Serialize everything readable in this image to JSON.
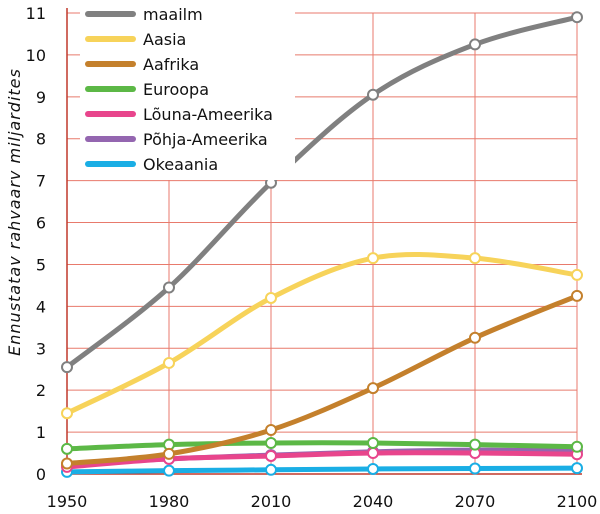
{
  "chart_data": {
    "type": "line",
    "title": "",
    "xlabel": "",
    "ylabel": "Ennustatav rahvaarv miljardites",
    "x": [
      1950,
      1980,
      2010,
      2040,
      2070,
      2100
    ],
    "xlim": [
      1950,
      2100
    ],
    "ylim": [
      0,
      11
    ],
    "yticks": [
      0,
      1,
      2,
      3,
      4,
      5,
      6,
      7,
      8,
      9,
      10,
      11
    ],
    "grid": true,
    "legend_position": "top-left",
    "series": [
      {
        "name": "maailm",
        "color": "#808080",
        "values": [
          2.55,
          4.45,
          6.95,
          9.05,
          10.25,
          10.9
        ]
      },
      {
        "name": "Aasia",
        "color": "#f7d35a",
        "values": [
          1.45,
          2.65,
          4.2,
          5.15,
          5.15,
          4.75
        ]
      },
      {
        "name": "Aafrika",
        "color": "#c4802c",
        "values": [
          0.25,
          0.48,
          1.05,
          2.05,
          3.25,
          4.25
        ]
      },
      {
        "name": "Euroopa",
        "color": "#5cb846",
        "values": [
          0.6,
          0.7,
          0.74,
          0.74,
          0.7,
          0.65
        ]
      },
      {
        "name": "Lõuna-Ameerika",
        "color": "#e8458c",
        "values": [
          0.17,
          0.36,
          0.43,
          0.5,
          0.5,
          0.47
        ]
      },
      {
        "name": "Põhja-Ameerika",
        "color": "#9466b0",
        "values": [
          0.22,
          0.36,
          0.45,
          0.53,
          0.57,
          0.55
        ]
      },
      {
        "name": "Okeaania",
        "color": "#1aaee5",
        "values": [
          0.05,
          0.08,
          0.1,
          0.12,
          0.13,
          0.14
        ]
      }
    ]
  }
}
